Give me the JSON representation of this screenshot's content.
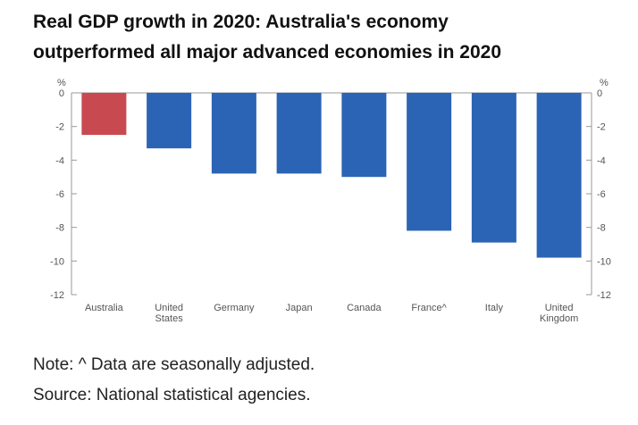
{
  "title_lines": [
    "Real GDP growth in 2020: Australia's economy",
    "outperformed all major advanced economies in 2020"
  ],
  "note": "Note: ^ Data are seasonally adjusted.",
  "source": "Source: National statistical agencies.",
  "colors": {
    "highlight": "#c84a50",
    "bar": "#2b63b5",
    "axis": "#999999"
  },
  "chart_data": {
    "type": "bar",
    "categories": [
      [
        "Australia"
      ],
      [
        "United",
        "States"
      ],
      [
        "Germany"
      ],
      [
        "Japan"
      ],
      [
        "Canada"
      ],
      [
        "France^"
      ],
      [
        "Italy"
      ],
      [
        "United",
        "Kingdom"
      ]
    ],
    "values": [
      -2.5,
      -3.3,
      -4.8,
      -4.8,
      -5.0,
      -8.2,
      -8.9,
      -9.8
    ],
    "highlight_index": 0,
    "ylim": [
      -12,
      0
    ],
    "yticks": [
      0,
      -2,
      -4,
      -6,
      -8,
      -10,
      -12
    ],
    "yunit_left": "%",
    "yunit_right": "%",
    "grid": false
  }
}
